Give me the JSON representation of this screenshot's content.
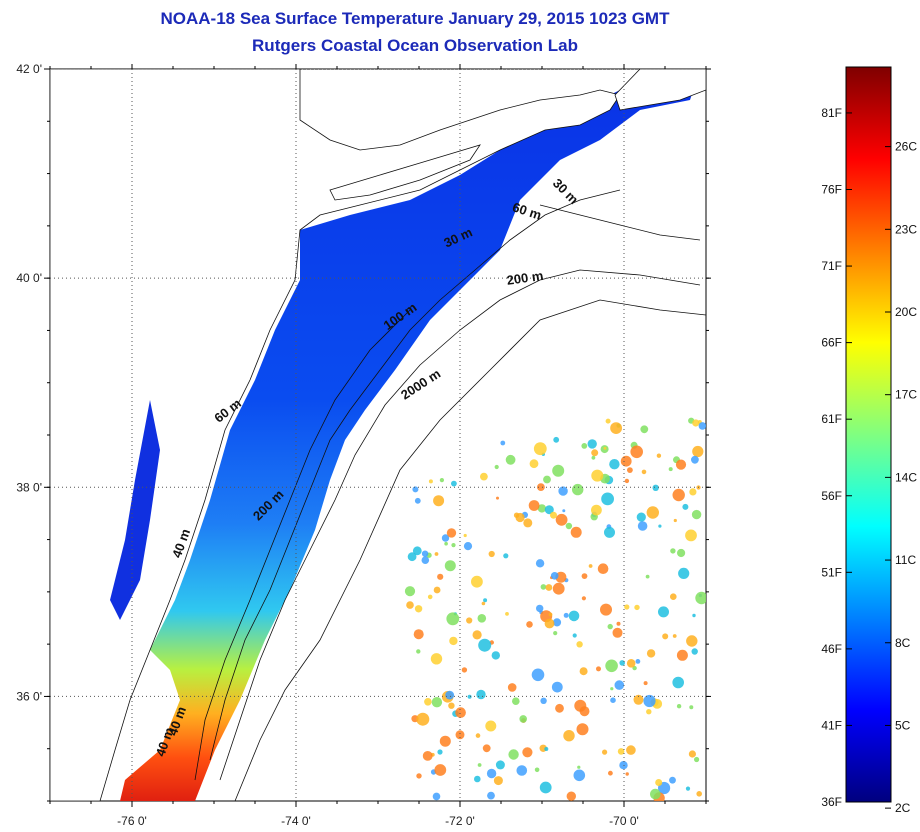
{
  "title": {
    "line1": "NOAA-18 Sea Surface Temperature January 29, 2015 1023 GMT",
    "line2": "Rutgers Coastal Ocean Observation Lab"
  },
  "map": {
    "lon_range": [
      -77.0,
      -69.0
    ],
    "lat_range": [
      35.0,
      42.0
    ],
    "x_ticks": [
      {
        "value": -76,
        "label": "-76 0'"
      },
      {
        "value": -74,
        "label": "-74 0'"
      },
      {
        "value": -72,
        "label": "-72 0'"
      },
      {
        "value": -70,
        "label": "-70 0'"
      }
    ],
    "y_ticks": [
      {
        "value": 42,
        "label": "42 0'"
      },
      {
        "value": 40,
        "label": "40 0'"
      },
      {
        "value": 38,
        "label": "38 0'"
      },
      {
        "value": 36,
        "label": "36 0'"
      }
    ],
    "grid": "dotted",
    "isobath_labels": [
      {
        "text": "40 m",
        "lon": -75.35,
        "lat": 37.45,
        "rotation": -70
      },
      {
        "text": "60 m",
        "lon": -74.8,
        "lat": 38.7,
        "rotation": -38
      },
      {
        "text": "200 m",
        "lon": -74.3,
        "lat": 37.8,
        "rotation": -45
      },
      {
        "text": "100 m",
        "lon": -72.7,
        "lat": 39.6,
        "rotation": -35
      },
      {
        "text": "2000 m",
        "lon": -72.45,
        "lat": 38.95,
        "rotation": -33
      },
      {
        "text": "200 m",
        "lon": -71.2,
        "lat": 39.96,
        "rotation": -8
      },
      {
        "text": "30 m",
        "lon": -72.0,
        "lat": 40.35,
        "rotation": -25
      },
      {
        "text": "60 m",
        "lon": -71.2,
        "lat": 40.6,
        "rotation": 18
      },
      {
        "text": "30 m",
        "lon": -70.75,
        "lat": 40.8,
        "rotation": 45
      },
      {
        "text": "40 m",
        "lon": -75.55,
        "lat": 35.55,
        "rotation": -70
      },
      {
        "text": "40 m",
        "lon": -75.4,
        "lat": 35.75,
        "rotation": -70
      }
    ]
  },
  "colorbar": {
    "colors": [
      "#00007f",
      "#0000ff",
      "#0080ff",
      "#00ffff",
      "#80ff80",
      "#ffff00",
      "#ff8000",
      "#ff0000",
      "#7f0000"
    ],
    "range_f": [
      36,
      84
    ],
    "f_ticks": [
      {
        "value": 36,
        "label": "36F"
      },
      {
        "value": 41,
        "label": "41F"
      },
      {
        "value": 46,
        "label": "46F"
      },
      {
        "value": 51,
        "label": "51F"
      },
      {
        "value": 56,
        "label": "56F"
      },
      {
        "value": 61,
        "label": "61F"
      },
      {
        "value": 66,
        "label": "66F"
      },
      {
        "value": 71,
        "label": "71F"
      },
      {
        "value": 76,
        "label": "76F"
      },
      {
        "value": 81,
        "label": "81F"
      }
    ],
    "c_ticks": [
      {
        "value": 2,
        "label": "2C"
      },
      {
        "value": 5,
        "label": "5C"
      },
      {
        "value": 8,
        "label": "8C"
      },
      {
        "value": 11,
        "label": "11C"
      },
      {
        "value": 14,
        "label": "14C"
      },
      {
        "value": 17,
        "label": "17C"
      },
      {
        "value": 20,
        "label": "20C"
      },
      {
        "value": 23,
        "label": "23C"
      },
      {
        "value": 26,
        "label": "26C"
      }
    ]
  }
}
